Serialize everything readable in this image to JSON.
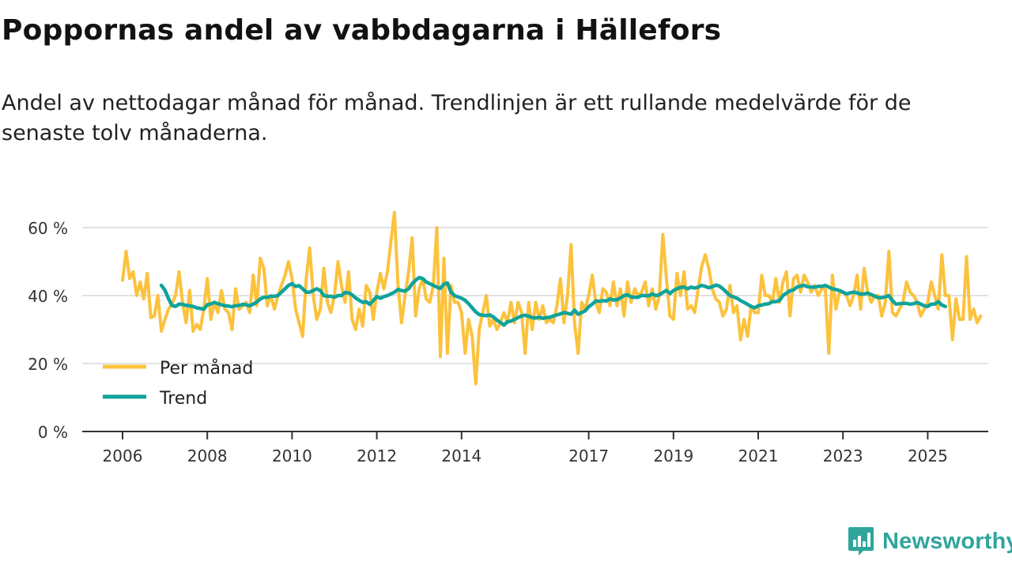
{
  "title": "Poppornas andel av vabbdagarna i Hällefors",
  "subtitle": "Andel av nettodagar månad för månad. Trendlinjen är ett rullande medelvärde för de senaste tolv månaderna.",
  "brand": "Newsworthy",
  "colors": {
    "monthly": "#fcc23d",
    "trend": "#10a39a",
    "grid": "#d9d9d9",
    "axis": "#333333"
  },
  "chart_data": {
    "type": "line",
    "title": "Poppornas andel av vabbdagarna i Hällefors",
    "xlabel": "",
    "ylabel": "",
    "ylim": [
      0,
      60
    ],
    "xlim": [
      2006.0,
      2025.75
    ],
    "yticks": [
      0,
      20,
      40,
      60
    ],
    "ytick_labels": [
      "0 %",
      "20 %",
      "40 %",
      "60 %"
    ],
    "xticks": [
      2006,
      2008,
      2010,
      2012,
      2014,
      2017,
      2019,
      2021,
      2023,
      2025
    ],
    "legend": "bottom-left",
    "grid": "horizontal",
    "x_start": 2006.0,
    "x_step_months": 1,
    "series": [
      {
        "name": "Per månad",
        "values": [
          44.5,
          53,
          45,
          47,
          40,
          44,
          39,
          46.5,
          33.5,
          34,
          40,
          29.5,
          33,
          36,
          37.5,
          40,
          47,
          38,
          32,
          41.5,
          29.5,
          31.5,
          30,
          36,
          45,
          33,
          38,
          35,
          41.5,
          36,
          35,
          30,
          42,
          36,
          37,
          38,
          35,
          46,
          37,
          51,
          48,
          37,
          40,
          36,
          40,
          43,
          46,
          50,
          45,
          36,
          32,
          28,
          45,
          54,
          40,
          33,
          36,
          48,
          38,
          35,
          40,
          50,
          43,
          38,
          47,
          33,
          30,
          36,
          31,
          43,
          41,
          33,
          41,
          46.5,
          42,
          47,
          56,
          64.5,
          43,
          32,
          40,
          47,
          57,
          34,
          42,
          45,
          39,
          38,
          43,
          60,
          22,
          51,
          23,
          43,
          38,
          38,
          35,
          23,
          33,
          28,
          14,
          30,
          35,
          40,
          31,
          33,
          30,
          32,
          35,
          32,
          38,
          32,
          38,
          35,
          23,
          38,
          30,
          38,
          33,
          37,
          32,
          33,
          32,
          37,
          45,
          32,
          40,
          55,
          32,
          23,
          38,
          36,
          40,
          46,
          38,
          35,
          42,
          41,
          37,
          44,
          37,
          42,
          34,
          44,
          38,
          42,
          40,
          41,
          44,
          37,
          42,
          36,
          40,
          58,
          45,
          34,
          33,
          46.5,
          40,
          47,
          36,
          37,
          35,
          42,
          48.5,
          52,
          48,
          42,
          39,
          38,
          34,
          36,
          43,
          35,
          37,
          27,
          33,
          28,
          37,
          35,
          35,
          46,
          40,
          40,
          38,
          45,
          38,
          44,
          47,
          34,
          45,
          46,
          41,
          46,
          44,
          41,
          43,
          40,
          42,
          42,
          23,
          46,
          36,
          41,
          41,
          40,
          37,
          40,
          46,
          36,
          48,
          41,
          38,
          40,
          40,
          34,
          38,
          53,
          35,
          34,
          36,
          38,
          44,
          41,
          40,
          38,
          34,
          36,
          38,
          44,
          40,
          36,
          52,
          40,
          40,
          27,
          39,
          33,
          33,
          51.5,
          33,
          36,
          32,
          34
        ]
      },
      {
        "name": "Trend",
        "values": [
          null,
          null,
          null,
          null,
          null,
          null,
          null,
          null,
          null,
          null,
          null,
          43,
          41.6,
          39.1,
          37.1,
          36.8,
          37.5,
          37.4,
          37.1,
          37,
          36.8,
          36.4,
          36.2,
          36,
          37.3,
          37.5,
          38,
          37.6,
          37.3,
          37,
          36.9,
          36.7,
          37,
          37.1,
          37.4,
          37.3,
          37,
          37.5,
          38.1,
          39,
          39.5,
          39.5,
          39.8,
          39.8,
          40,
          41,
          42,
          43,
          43.5,
          42.7,
          42.9,
          42,
          41,
          41,
          41.5,
          42,
          41.5,
          40,
          39.8,
          39.8,
          39.5,
          40,
          40,
          40.9,
          40.8,
          40.2,
          39.3,
          38.6,
          38,
          38.2,
          37.4,
          38.5,
          39.7,
          39.2,
          39.7,
          40,
          40.5,
          41,
          41.8,
          41.5,
          41.3,
          42,
          43.5,
          44.5,
          45.3,
          45,
          44,
          43.5,
          43,
          42.5,
          42.1,
          43.4,
          43.7,
          41,
          40,
          39.6,
          39.2,
          38.6,
          37.6,
          36.4,
          35.2,
          34.4,
          34.2,
          34.1,
          34.3,
          33.7,
          32.8,
          32.1,
          31.3,
          32.3,
          32.5,
          33,
          33.5,
          34,
          34.2,
          33.9,
          33.5,
          33.4,
          33.6,
          33.3,
          33.5,
          33.6,
          34,
          34.3,
          34.6,
          35,
          34.8,
          34.5,
          35.7,
          34.5,
          35,
          35.5,
          36.7,
          37.5,
          38.4,
          38.3,
          38.5,
          38.4,
          39,
          38.7,
          38.8,
          39.3,
          40,
          40.2,
          39.6,
          39.5,
          39.5,
          40,
          40,
          39.9,
          40.5,
          40,
          40.2,
          40.9,
          41.5,
          40.6,
          41.5,
          42,
          42.4,
          42.5,
          42,
          42.5,
          42.2,
          42.5,
          43,
          42.7,
          42.3,
          42.6,
          43.1,
          42.8,
          42,
          41,
          40,
          39.6,
          39.2,
          38.5,
          38,
          37.4,
          36.8,
          36.4,
          37,
          37.2,
          37.5,
          37.6,
          38.2,
          38.2,
          38.5,
          40,
          40.7,
          41.4,
          41.7,
          42.5,
          42.8,
          43,
          42.6,
          42.5,
          42.5,
          42.7,
          42.7,
          43,
          42.5,
          42,
          41.8,
          41.5,
          41,
          40.5,
          40.8,
          41,
          40.8,
          40.4,
          40.5,
          40.7,
          40.3,
          39.8,
          39.4,
          39.4,
          39.6,
          40,
          38.5,
          37.5,
          37.6,
          37.7,
          37.7,
          37.5,
          37.6,
          38,
          37.5,
          37,
          36.8,
          37.5,
          37.5,
          38.2,
          37.2,
          36.8
        ]
      }
    ]
  }
}
